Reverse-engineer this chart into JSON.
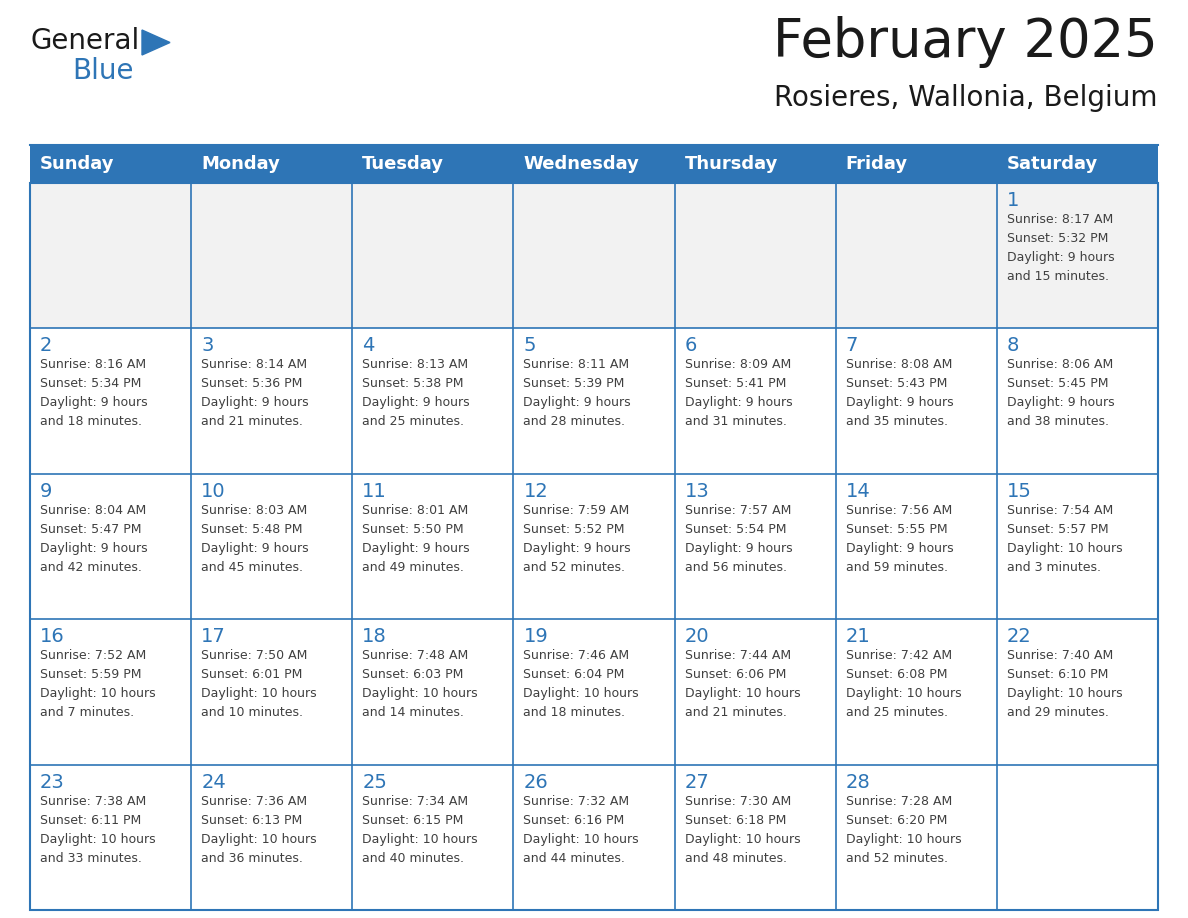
{
  "title": "February 2025",
  "subtitle": "Rosieres, Wallonia, Belgium",
  "days_of_week": [
    "Sunday",
    "Monday",
    "Tuesday",
    "Wednesday",
    "Thursday",
    "Friday",
    "Saturday"
  ],
  "header_bg": "#2E75B6",
  "header_text": "#FFFFFF",
  "cell_bg": "#FFFFFF",
  "first_row_bg": "#F2F2F2",
  "cell_border": "#2E75B6",
  "day_number_color": "#2E75B6",
  "info_text_color": "#404040",
  "title_color": "#1a1a1a",
  "subtitle_color": "#1a1a1a",
  "logo_general_color": "#1a1a1a",
  "logo_blue_color": "#2E75B6",
  "calendar_data": [
    [
      null,
      null,
      null,
      null,
      null,
      null,
      {
        "day": 1,
        "sunrise": "8:17 AM",
        "sunset": "5:32 PM",
        "daylight": "9 hours and 15 minutes."
      }
    ],
    [
      {
        "day": 2,
        "sunrise": "8:16 AM",
        "sunset": "5:34 PM",
        "daylight": "9 hours and 18 minutes."
      },
      {
        "day": 3,
        "sunrise": "8:14 AM",
        "sunset": "5:36 PM",
        "daylight": "9 hours and 21 minutes."
      },
      {
        "day": 4,
        "sunrise": "8:13 AM",
        "sunset": "5:38 PM",
        "daylight": "9 hours and 25 minutes."
      },
      {
        "day": 5,
        "sunrise": "8:11 AM",
        "sunset": "5:39 PM",
        "daylight": "9 hours and 28 minutes."
      },
      {
        "day": 6,
        "sunrise": "8:09 AM",
        "sunset": "5:41 PM",
        "daylight": "9 hours and 31 minutes."
      },
      {
        "day": 7,
        "sunrise": "8:08 AM",
        "sunset": "5:43 PM",
        "daylight": "9 hours and 35 minutes."
      },
      {
        "day": 8,
        "sunrise": "8:06 AM",
        "sunset": "5:45 PM",
        "daylight": "9 hours and 38 minutes."
      }
    ],
    [
      {
        "day": 9,
        "sunrise": "8:04 AM",
        "sunset": "5:47 PM",
        "daylight": "9 hours and 42 minutes."
      },
      {
        "day": 10,
        "sunrise": "8:03 AM",
        "sunset": "5:48 PM",
        "daylight": "9 hours and 45 minutes."
      },
      {
        "day": 11,
        "sunrise": "8:01 AM",
        "sunset": "5:50 PM",
        "daylight": "9 hours and 49 minutes."
      },
      {
        "day": 12,
        "sunrise": "7:59 AM",
        "sunset": "5:52 PM",
        "daylight": "9 hours and 52 minutes."
      },
      {
        "day": 13,
        "sunrise": "7:57 AM",
        "sunset": "5:54 PM",
        "daylight": "9 hours and 56 minutes."
      },
      {
        "day": 14,
        "sunrise": "7:56 AM",
        "sunset": "5:55 PM",
        "daylight": "9 hours and 59 minutes."
      },
      {
        "day": 15,
        "sunrise": "7:54 AM",
        "sunset": "5:57 PM",
        "daylight": "10 hours and 3 minutes."
      }
    ],
    [
      {
        "day": 16,
        "sunrise": "7:52 AM",
        "sunset": "5:59 PM",
        "daylight": "10 hours and 7 minutes."
      },
      {
        "day": 17,
        "sunrise": "7:50 AM",
        "sunset": "6:01 PM",
        "daylight": "10 hours and 10 minutes."
      },
      {
        "day": 18,
        "sunrise": "7:48 AM",
        "sunset": "6:03 PM",
        "daylight": "10 hours and 14 minutes."
      },
      {
        "day": 19,
        "sunrise": "7:46 AM",
        "sunset": "6:04 PM",
        "daylight": "10 hours and 18 minutes."
      },
      {
        "day": 20,
        "sunrise": "7:44 AM",
        "sunset": "6:06 PM",
        "daylight": "10 hours and 21 minutes."
      },
      {
        "day": 21,
        "sunrise": "7:42 AM",
        "sunset": "6:08 PM",
        "daylight": "10 hours and 25 minutes."
      },
      {
        "day": 22,
        "sunrise": "7:40 AM",
        "sunset": "6:10 PM",
        "daylight": "10 hours and 29 minutes."
      }
    ],
    [
      {
        "day": 23,
        "sunrise": "7:38 AM",
        "sunset": "6:11 PM",
        "daylight": "10 hours and 33 minutes."
      },
      {
        "day": 24,
        "sunrise": "7:36 AM",
        "sunset": "6:13 PM",
        "daylight": "10 hours and 36 minutes."
      },
      {
        "day": 25,
        "sunrise": "7:34 AM",
        "sunset": "6:15 PM",
        "daylight": "10 hours and 40 minutes."
      },
      {
        "day": 26,
        "sunrise": "7:32 AM",
        "sunset": "6:16 PM",
        "daylight": "10 hours and 44 minutes."
      },
      {
        "day": 27,
        "sunrise": "7:30 AM",
        "sunset": "6:18 PM",
        "daylight": "10 hours and 48 minutes."
      },
      {
        "day": 28,
        "sunrise": "7:28 AM",
        "sunset": "6:20 PM",
        "daylight": "10 hours and 52 minutes."
      },
      null
    ]
  ]
}
